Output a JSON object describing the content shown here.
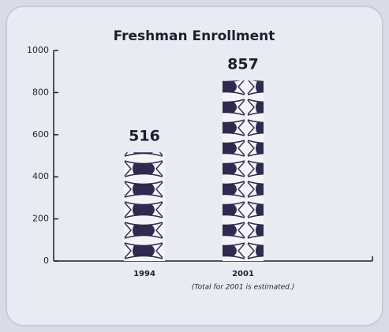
{
  "chart_data": {
    "type": "bar",
    "title": "Freshman Enrollment",
    "categories": [
      "1994",
      "2001"
    ],
    "values": [
      516,
      857
    ],
    "color": "#2e2b4f",
    "ylim": [
      0,
      1000
    ],
    "yticks": [
      0,
      200,
      400,
      600,
      800,
      1000
    ],
    "annotation": "(Total for 2001 is estimated.)"
  }
}
